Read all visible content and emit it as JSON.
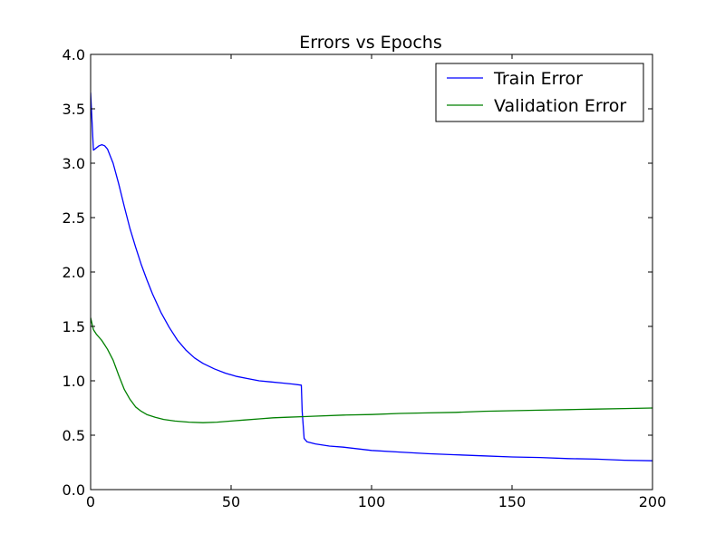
{
  "chart_data": {
    "type": "line",
    "title": "Errors vs Epochs",
    "xlabel": "",
    "ylabel": "",
    "xlim": [
      0,
      200
    ],
    "ylim": [
      0.0,
      4.0
    ],
    "grid": false,
    "legend_position": "top-right",
    "x_ticks": [
      0,
      50,
      100,
      150,
      200
    ],
    "x_tick_labels": [
      "0",
      "50",
      "100",
      "150",
      "200"
    ],
    "y_ticks": [
      0.0,
      0.5,
      1.0,
      1.5,
      2.0,
      2.5,
      3.0,
      3.5,
      4.0
    ],
    "y_tick_labels": [
      "0.0",
      "0.5",
      "1.0",
      "1.5",
      "2.0",
      "2.5",
      "3.0",
      "3.5",
      "4.0"
    ],
    "series": [
      {
        "name": "Train Error",
        "color": "#0000ff",
        "x": [
          0,
          1,
          2,
          3,
          4,
          5,
          6,
          8,
          10,
          12,
          14,
          16,
          18,
          20,
          22,
          25,
          28,
          31,
          34,
          37,
          40,
          44,
          48,
          52,
          56,
          60,
          64,
          68,
          72,
          75,
          75.3,
          76,
          77,
          80,
          85,
          90,
          100,
          110,
          120,
          130,
          140,
          150,
          160,
          170,
          180,
          190,
          200
        ],
        "y": [
          3.65,
          3.12,
          3.14,
          3.16,
          3.17,
          3.16,
          3.13,
          3.0,
          2.81,
          2.6,
          2.4,
          2.23,
          2.07,
          1.93,
          1.8,
          1.63,
          1.49,
          1.37,
          1.28,
          1.21,
          1.16,
          1.11,
          1.07,
          1.04,
          1.02,
          1.0,
          0.99,
          0.98,
          0.97,
          0.96,
          0.72,
          0.47,
          0.44,
          0.42,
          0.4,
          0.39,
          0.36,
          0.345,
          0.33,
          0.32,
          0.31,
          0.3,
          0.295,
          0.285,
          0.28,
          0.27,
          0.265
        ]
      },
      {
        "name": "Validation Error",
        "color": "#008000",
        "x": [
          0,
          1,
          2,
          3,
          4,
          5,
          6,
          8,
          10,
          12,
          14,
          16,
          18,
          20,
          23,
          26,
          30,
          35,
          40,
          45,
          50,
          55,
          60,
          65,
          70,
          75,
          80,
          90,
          100,
          110,
          120,
          130,
          140,
          150,
          160,
          170,
          180,
          190,
          200
        ],
        "y": [
          1.58,
          1.47,
          1.43,
          1.4,
          1.37,
          1.33,
          1.29,
          1.19,
          1.05,
          0.92,
          0.83,
          0.76,
          0.72,
          0.69,
          0.665,
          0.645,
          0.63,
          0.62,
          0.615,
          0.62,
          0.63,
          0.64,
          0.65,
          0.66,
          0.665,
          0.67,
          0.675,
          0.685,
          0.69,
          0.7,
          0.705,
          0.71,
          0.72,
          0.725,
          0.73,
          0.735,
          0.74,
          0.745,
          0.75
        ]
      }
    ]
  }
}
